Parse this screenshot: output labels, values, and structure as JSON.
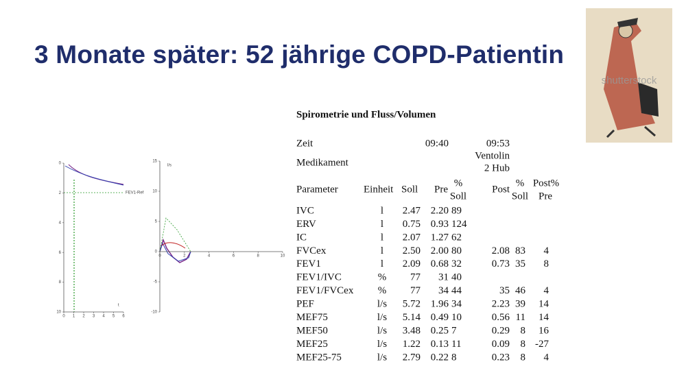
{
  "title": "3 Monate später: 52 jährige COPD-Patientin",
  "image": {
    "watermark": "shutterstock"
  },
  "plots": [
    {
      "xticks": [
        0,
        1,
        2,
        3,
        4,
        5,
        6
      ],
      "yticks": [
        0,
        2,
        4,
        6,
        8,
        10
      ],
      "annotation": "FEV1-Ref",
      "axis_label": "t"
    },
    {
      "xticks": [
        0,
        2,
        4,
        6,
        8,
        10
      ],
      "yticks": [
        15,
        10,
        5,
        0,
        -5,
        -10
      ],
      "axis_label": "l/s"
    }
  ],
  "report": {
    "heading": "Spirometrie und Fluss/Volumen",
    "time": {
      "label": "Zeit",
      "pre": "09:40",
      "post": "09:53"
    },
    "medication": {
      "label": "Medikament",
      "line1": "Ventolin",
      "line2": "2 Hub"
    },
    "columns": {
      "parameter": "Parameter",
      "unit": "Einheit",
      "soll": "Soll",
      "pre": "Pre",
      "pct_soll_top": "%",
      "pct_soll_bottom": "Soll",
      "post": "Post",
      "post_pct_soll_top": "%",
      "post_pct_soll_bottom": "Soll",
      "post_pct_pre_top": "Post%",
      "post_pct_pre_bottom": "Pre"
    },
    "rows": [
      [
        "IVC",
        "l",
        "2.47",
        "2.20",
        "89"
      ],
      [
        "ERV",
        "l",
        "0.75",
        "0.93",
        "124"
      ],
      [
        "IC",
        "l",
        "2.07",
        "1.27",
        "62"
      ],
      [
        "FVCex",
        "l",
        "2.50",
        "2.00",
        "80",
        "2.08",
        "83",
        "4"
      ],
      [
        "FEV1",
        "l",
        "2.09",
        "0.68",
        "32",
        "0.73",
        "35",
        "8"
      ],
      [
        "FEV1/IVC",
        "%",
        "77",
        "31",
        "40"
      ],
      [
        "FEV1/FVCex",
        "%",
        "77",
        "34",
        "44",
        "35",
        "46",
        "4"
      ],
      [
        "PEF",
        "l/s",
        "5.72",
        "1.96",
        "34",
        "2.23",
        "39",
        "14"
      ],
      [
        "MEF75",
        "l/s",
        "5.14",
        "0.49",
        "10",
        "0.56",
        "11",
        "14"
      ],
      [
        "MEF50",
        "l/s",
        "3.48",
        "0.25",
        "7",
        "0.29",
        "8",
        "16"
      ],
      [
        "MEF25",
        "l/s",
        "1.22",
        "0.13",
        "11",
        "0.09",
        "8",
        "-27"
      ],
      [
        "MEF25-75",
        "l/s",
        "2.79",
        "0.22",
        "8",
        "0.23",
        "8",
        "4"
      ]
    ]
  }
}
